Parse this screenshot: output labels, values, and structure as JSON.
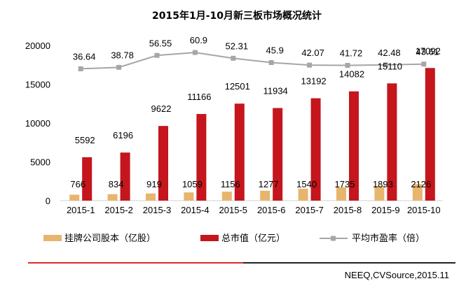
{
  "chart_data": {
    "type": "bar",
    "title": "2015年1月-10月新三板市场概况统计",
    "categories": [
      "2015-1",
      "2015-2",
      "2015-3",
      "2015-4",
      "2015-5",
      "2015-6",
      "2015-7",
      "2015-8",
      "2015-9",
      "2015-10"
    ],
    "ylim": [
      0,
      20000
    ],
    "yticks": [
      0,
      5000,
      10000,
      15000,
      20000
    ],
    "ytick_labels": [
      "0",
      "5000",
      "10000",
      "15000",
      "20000"
    ],
    "series": [
      {
        "name": "挂牌公司股本（亿股）",
        "type": "bar",
        "color": "#e8b56e",
        "values": [
          766,
          834,
          919,
          1059,
          1156,
          1277,
          1540,
          1735,
          1893,
          2126
        ],
        "labels": [
          "766",
          "834",
          "919",
          "1059",
          "1156",
          "1277",
          "1540",
          "1735",
          "1893",
          "2126"
        ]
      },
      {
        "name": "总市值（亿元）",
        "type": "bar",
        "color": "#c4161c",
        "values": [
          5592,
          6196,
          9622,
          11166,
          12501,
          11934,
          13192,
          14082,
          15110,
          17092
        ],
        "labels": [
          "5592",
          "6196",
          "9622",
          "11166",
          "12501",
          "11934",
          "13192",
          "14082",
          "15110",
          "17092"
        ]
      },
      {
        "name": "平均市盈率（倍）",
        "type": "line",
        "color": "#a6a6a6",
        "values": [
          36.64,
          38.78,
          56.55,
          60.9,
          52.31,
          45.9,
          42.07,
          41.72,
          42.48,
          43.61
        ],
        "labels": [
          "36.64",
          "38.78",
          "56.55",
          "60.9",
          "52.31",
          "45.9",
          "42.07",
          "41.72",
          "42.48",
          "43.61"
        ]
      }
    ],
    "legend_position": "bottom",
    "grid": false
  },
  "source": "NEEQ,CVSource,2015.11"
}
